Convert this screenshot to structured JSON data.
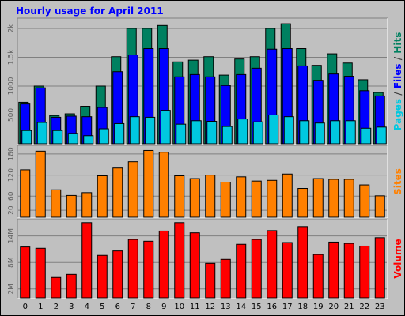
{
  "chart_data": {
    "type": "bar",
    "title": "Hourly usage for April 2011",
    "categories": [
      "0",
      "1",
      "2",
      "3",
      "4",
      "5",
      "6",
      "7",
      "8",
      "9",
      "10",
      "11",
      "12",
      "13",
      "14",
      "15",
      "16",
      "17",
      "18",
      "19",
      "20",
      "21",
      "22",
      "23"
    ],
    "panels": [
      {
        "name": "pages-files-hits",
        "side_label": [
          {
            "text": "Pages",
            "color": "#00c8e0"
          },
          {
            "text": " / ",
            "color": "#404040"
          },
          {
            "text": "Files",
            "color": "#0000ff"
          },
          {
            "text": " / ",
            "color": "#404040"
          },
          {
            "text": "Hits",
            "color": "#008060"
          }
        ],
        "ylim": [
          0,
          2150
        ],
        "yticks": [
          500,
          1000,
          1500,
          2000
        ],
        "ytick_labels": [
          "500",
          "1000",
          "1.5k",
          "2k"
        ],
        "series": [
          {
            "name": "Hits",
            "color": "#008060",
            "values": [
              720,
              1000,
              490,
              520,
              650,
              1000,
              1510,
              2000,
              2000,
              2050,
              1420,
              1450,
              1510,
              1190,
              1470,
              1510,
              2000,
              2080,
              1650,
              1360,
              1560,
              1400,
              1110,
              890
            ]
          },
          {
            "name": "Files",
            "color": "#0000ff",
            "values": [
              690,
              970,
              460,
              480,
              470,
              630,
              1250,
              1540,
              1650,
              1650,
              1160,
              1200,
              1160,
              1010,
              1200,
              1310,
              1640,
              1650,
              1350,
              1100,
              1210,
              1170,
              920,
              830
            ]
          },
          {
            "name": "Pages",
            "color": "#00c8e0",
            "values": [
              230,
              370,
              230,
              180,
              140,
              260,
              350,
              470,
              460,
              580,
              340,
              400,
              390,
              300,
              430,
              380,
              500,
              470,
              400,
              360,
              400,
              400,
              270,
              290
            ]
          }
        ]
      },
      {
        "name": "sites",
        "side_label": [
          {
            "text": "Sites",
            "color": "#ff8000"
          }
        ],
        "ylim": [
          0,
          200
        ],
        "yticks": [
          20,
          60,
          120,
          180
        ],
        "ytick_labels": [
          "20",
          "60",
          "120",
          "180"
        ],
        "series": [
          {
            "name": "Sites",
            "color": "#ff8000",
            "values": [
              135,
              188,
              78,
              62,
              70,
              118,
              140,
              158,
              190,
              185,
              118,
              110,
              120,
              100,
              115,
              103,
              105,
              123,
              82,
              110,
              108,
              108,
              92,
              61
            ]
          }
        ]
      },
      {
        "name": "volume",
        "side_label": [
          {
            "text": "Volume",
            "color": "#ff0000"
          }
        ],
        "ylim": [
          0,
          17.5
        ],
        "yticks": [
          2,
          8,
          14
        ],
        "ytick_labels": [
          "2M",
          "8M",
          "14M"
        ],
        "series": [
          {
            "name": "Volume",
            "color": "#ff0000",
            "values": [
              11.5,
              11.2,
              4.6,
              5.3,
              17.0,
              9.6,
              10.6,
              13.2,
              12.8,
              15.1,
              17.0,
              14.7,
              7.8,
              8.7,
              12.1,
              13.2,
              15.2,
              12.5,
              16.1,
              9.8,
              12.6,
              12.3,
              11.7,
              13.6
            ]
          }
        ]
      }
    ],
    "grid": true,
    "legend": "right side, rotated"
  }
}
